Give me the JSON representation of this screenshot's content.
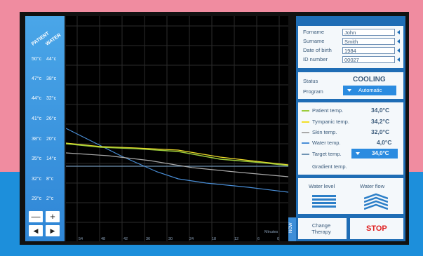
{
  "axis": {
    "patient_header": "PATIENT",
    "water_header": "WATER",
    "ticks": [
      {
        "patient": "50°c",
        "water": "44°c"
      },
      {
        "patient": "47°c",
        "water": "38°c"
      },
      {
        "patient": "44°c",
        "water": "32°c"
      },
      {
        "patient": "41°c",
        "water": "26°c"
      },
      {
        "patient": "38°c",
        "water": "20°c"
      },
      {
        "patient": "35°c",
        "water": "14°c"
      },
      {
        "patient": "32°c",
        "water": "8°c"
      },
      {
        "patient": "29°c",
        "water": "2°c"
      }
    ],
    "minus_label": "—",
    "plus_label": "+",
    "prev_label": "◀",
    "next_label": "▶"
  },
  "plot": {
    "xticks": [
      "54",
      "48",
      "42",
      "36",
      "30",
      "24",
      "18",
      "12",
      "6",
      "0"
    ],
    "xunit": "Minutes",
    "now_label": "NOW"
  },
  "patient": {
    "forename_label": "Forname",
    "forename": "John",
    "surname_label": "Surname",
    "surname": "Smith",
    "dob_label": "Date of birth",
    "dob": "1984",
    "id_label": "ID number",
    "id": "00027"
  },
  "status": {
    "status_label": "Status",
    "status_value": "COOLING",
    "program_label": "Program",
    "program_value": "Automatic"
  },
  "temps": {
    "patient_label": "Patient temp.",
    "patient_value": "34,0°C",
    "patient_color": "#9ccc3c",
    "tympanic_label": "Tympanic temp.",
    "tympanic_value": "34,2°C",
    "tympanic_color": "#f2df2a",
    "skin_label": "Skin temp.",
    "skin_value": "32,0°C",
    "skin_color": "#a9a9a9",
    "water_label": "Water temp.",
    "water_value": "4,0°C",
    "water_color": "#4a8fd8",
    "target_label": "Target temp.",
    "target_value": "34,0°C",
    "target_color": "#6f93b3",
    "gradient_label": "Gradient temp."
  },
  "water": {
    "level_label": "Water level",
    "flow_label": "Water flow"
  },
  "actions": {
    "change_label": "Change Therapy",
    "stop_label": "STOP"
  },
  "colors": {
    "stop": "#e02020",
    "accent": "#2a8be0"
  }
}
